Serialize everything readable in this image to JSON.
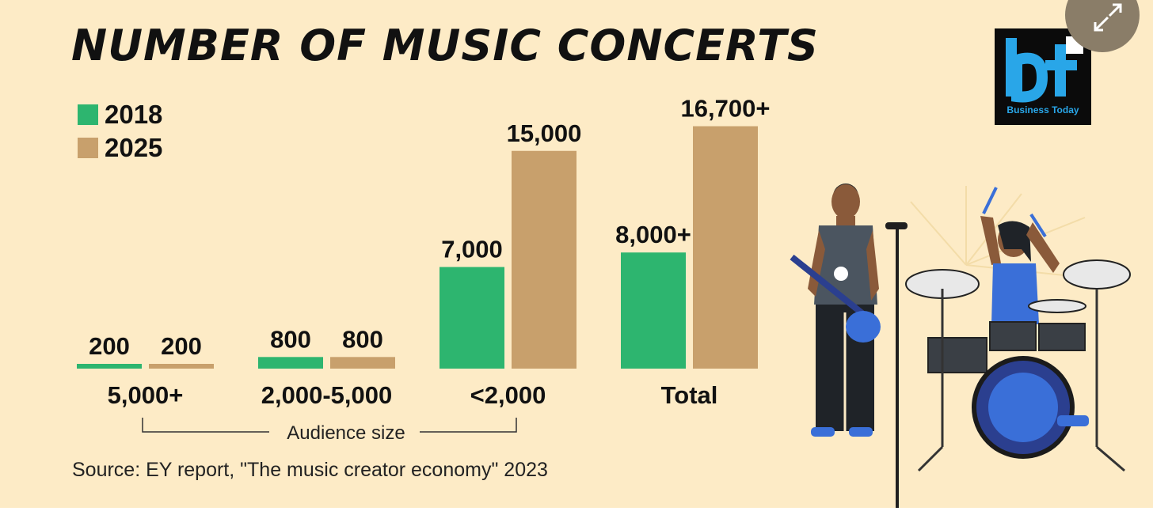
{
  "title": "NUMBER OF MUSIC CONCERTS",
  "legend": [
    {
      "label": "2018",
      "color": "#2db56f"
    },
    {
      "label": "2025",
      "color": "#c8a06c"
    }
  ],
  "chart_data": {
    "type": "bar",
    "title": "NUMBER OF MUSIC CONCERTS",
    "categories": [
      "5,000+",
      "2,000-5,000",
      "<2,000",
      "Total"
    ],
    "series": [
      {
        "name": "2018",
        "values": [
          200,
          800,
          7000,
          8000
        ],
        "labels": [
          "200",
          "800",
          "7,000",
          "8,000+"
        ],
        "color": "#2db56f"
      },
      {
        "name": "2025",
        "values": [
          200,
          800,
          15000,
          16700
        ],
        "labels": [
          "200",
          "800",
          "15,000",
          "16,700+"
        ],
        "color": "#c8a06c"
      }
    ],
    "xlabel": "Audience size",
    "ylabel": ""
  },
  "audience_label": "Audience size",
  "source": "Source: EY report, \"The music creator economy\" 2023",
  "logo": {
    "text": "bt",
    "subtitle": "Business Today",
    "color": "#29a6e8"
  },
  "expand_icon": "expand-arrows-icon",
  "illustration": "rock-band-illustration"
}
